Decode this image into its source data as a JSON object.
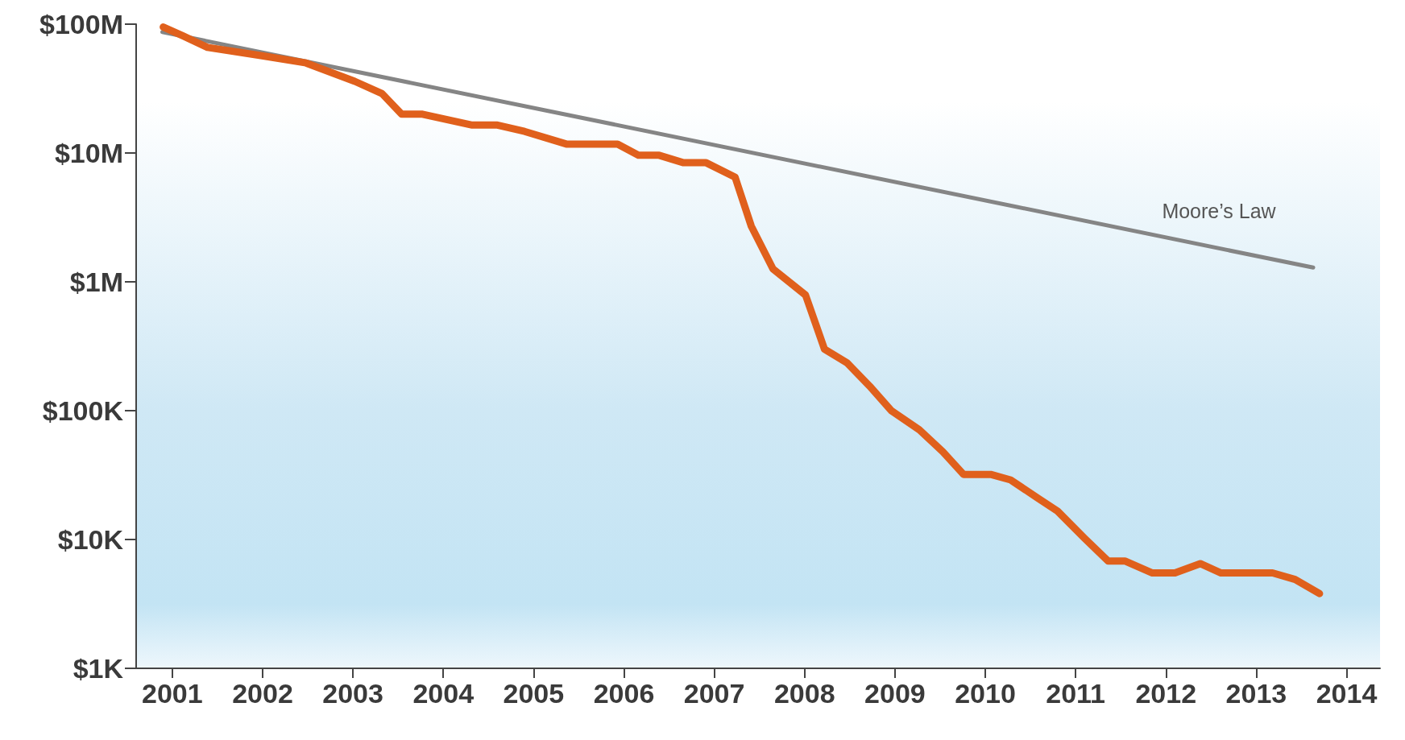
{
  "chart_data": {
    "type": "line",
    "log": "y",
    "grid": false,
    "legend": false,
    "marker": "none",
    "line_style": "solid",
    "xlim": [
      2000.6,
      2014.37
    ],
    "xticks": [
      2001,
      2002,
      2003,
      2004,
      2005,
      2006,
      2007,
      2008,
      2009,
      2010,
      2011,
      2012,
      2013,
      2014
    ],
    "ylim": [
      1000,
      100000000
    ],
    "yticks": [
      {
        "value": 1000,
        "label": "$1K"
      },
      {
        "value": 10000,
        "label": "$10K"
      },
      {
        "value": 100000,
        "label": "$100K"
      },
      {
        "value": 1000000,
        "label": "$1M"
      },
      {
        "value": 10000000,
        "label": "$10M"
      },
      {
        "value": 100000000,
        "label": "$100M"
      }
    ],
    "series": [
      {
        "color": "#e0601c",
        "x": [
          2000.9,
          2001.12,
          2001.39,
          2001.98,
          2002.48,
          2003.02,
          2003.32,
          2003.54,
          2003.77,
          2004.31,
          2004.59,
          2004.9,
          2005.37,
          2005.93,
          2006.16,
          2006.39,
          2006.66,
          2006.91,
          2007.23,
          2007.41,
          2007.65,
          2008.01,
          2008.22,
          2008.47,
          2008.72,
          2008.96,
          2009.27,
          2009.53,
          2009.76,
          2010.06,
          2010.28,
          2010.58,
          2010.8,
          2011.1,
          2011.36,
          2011.55,
          2011.85,
          2012.1,
          2012.38,
          2012.61,
          2013.18,
          2013.43,
          2013.7
        ],
        "values": [
          95000000,
          81000000,
          66000000,
          57000000,
          50000000,
          36000000,
          29000000,
          20000000,
          20000000,
          16500000,
          16500000,
          14700000,
          11700000,
          11700000,
          9600000,
          9600000,
          8400000,
          8400000,
          6500000,
          2700000,
          1260000,
          790000,
          300000,
          235000,
          155000,
          100000,
          71000,
          48000,
          32000,
          32000,
          29000,
          21000,
          16600,
          10200,
          6800,
          6800,
          5500,
          5500,
          6500,
          5500,
          5500,
          4900,
          3800
        ]
      },
      {
        "name": "Moore’s Law",
        "color": "#858585",
        "x": [
          2000.89,
          2013.63
        ],
        "values": [
          87000000,
          1290000
        ]
      }
    ]
  }
}
